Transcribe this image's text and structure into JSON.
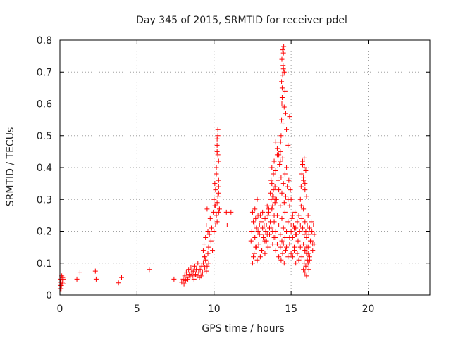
{
  "chart_data": {
    "type": "scatter",
    "title": "Day 345 of 2015, SRMTID for receiver pdel",
    "xlabel": "GPS time / hours",
    "ylabel": "SRMTID / TECUs",
    "xlim": [
      0,
      24
    ],
    "ylim": [
      0,
      0.8
    ],
    "xticks": [
      "0",
      "5",
      "10",
      "15",
      "20"
    ],
    "yticks": [
      "0",
      "0.1",
      "0.2",
      "0.3",
      "0.4",
      "0.5",
      "0.6",
      "0.7",
      "0.8"
    ],
    "grid": true,
    "marker": "+",
    "color": "#ff0000",
    "series": [
      {
        "name": "pdel",
        "x": [
          0.02,
          0.03,
          0.05,
          0.06,
          0.08,
          0.1,
          0.12,
          0.15,
          0.18,
          0.2,
          0.22,
          1.1,
          1.3,
          2.3,
          2.35,
          3.8,
          4.0,
          5.8,
          7.4,
          7.9,
          8.0,
          8.05,
          8.1,
          8.15,
          8.2,
          8.25,
          8.3,
          8.35,
          8.4,
          8.45,
          8.5,
          8.55,
          8.6,
          8.65,
          8.7,
          8.75,
          8.8,
          8.85,
          8.9,
          8.95,
          9.0,
          9.05,
          9.1,
          9.15,
          9.2,
          9.25,
          9.3,
          9.35,
          9.4,
          9.45,
          9.5,
          9.55,
          9.6,
          9.65,
          9.3,
          9.35,
          9.4,
          9.45,
          9.5,
          9.55,
          9.6,
          9.65,
          9.7,
          9.75,
          9.8,
          9.85,
          9.9,
          9.95,
          10.0,
          10.0,
          10.05,
          10.1,
          10.15,
          10.2,
          10.25,
          10.3,
          10.1,
          10.15,
          10.2,
          10.25,
          10.2,
          10.25,
          10.3,
          10.15,
          10.2,
          10.3,
          10.35,
          10.3,
          10.2,
          10.25,
          10.3,
          10.1,
          10.05,
          10.8,
          11.1,
          10.85,
          12.4,
          12.45,
          12.5,
          12.55,
          12.6,
          12.65,
          12.7,
          12.75,
          12.8,
          12.85,
          12.9,
          12.95,
          13.0,
          13.05,
          13.1,
          13.15,
          13.2,
          13.25,
          13.3,
          13.35,
          13.4,
          13.45,
          13.5,
          13.55,
          13.6,
          13.65,
          13.7,
          13.75,
          13.8,
          13.85,
          13.9,
          13.95,
          12.5,
          12.6,
          12.7,
          12.8,
          12.9,
          13.0,
          13.1,
          13.2,
          13.3,
          13.4,
          13.5,
          13.6,
          13.7,
          13.8,
          13.9,
          14.0,
          12.55,
          12.65,
          12.75,
          12.85,
          12.95,
          13.05,
          13.15,
          13.25,
          13.35,
          13.45,
          13.55,
          13.65,
          13.75,
          13.85,
          13.95,
          13.7,
          13.75,
          13.8,
          13.85,
          13.9,
          13.95,
          14.0,
          14.05,
          14.1,
          14.15,
          14.2,
          14.25,
          14.3,
          14.35,
          14.4,
          14.45,
          14.5,
          14.55,
          14.6,
          14.65,
          14.7,
          14.75,
          14.8,
          14.85,
          14.9,
          14.95,
          15.0,
          13.8,
          13.9,
          14.0,
          14.1,
          14.2,
          14.3,
          14.4,
          14.5,
          14.6,
          14.7,
          14.8,
          14.9,
          15.0,
          15.1,
          15.2,
          15.3,
          14.0,
          14.1,
          14.2,
          14.3,
          14.35,
          14.4,
          14.45,
          14.5,
          14.55,
          14.6,
          14.65,
          14.7,
          14.8,
          14.9,
          15.0,
          14.3,
          14.32,
          14.35,
          14.38,
          14.4,
          14.42,
          14.45,
          14.48,
          14.5,
          14.52,
          14.55,
          14.6,
          14.65,
          14.7,
          14.8,
          14.4,
          14.45,
          14.5,
          14.55,
          14.38,
          14.42,
          14.47,
          14.0,
          14.1,
          14.2,
          14.9,
          14.3,
          15.0,
          15.05,
          15.1,
          15.15,
          15.2,
          15.25,
          15.3,
          15.35,
          15.4,
          15.45,
          15.5,
          15.55,
          15.6,
          15.65,
          15.7,
          15.75,
          15.8,
          15.85,
          15.9,
          15.95,
          16.0,
          16.05,
          16.1,
          16.15,
          16.2,
          16.25,
          16.3,
          16.35,
          16.4,
          16.45,
          16.5,
          15.1,
          15.2,
          15.3,
          15.4,
          15.5,
          15.6,
          15.7,
          15.8,
          15.9,
          16.0,
          16.1,
          16.2,
          16.3,
          16.4,
          16.5,
          15.6,
          15.65,
          15.7,
          15.75,
          15.8,
          15.85,
          15.9,
          15.7,
          15.75,
          15.8,
          15.85,
          15.9,
          15.95,
          16.0,
          15.8,
          15.85,
          15.9,
          15.95,
          16.0,
          16.05,
          16.1,
          16.15,
          16.2,
          15.9,
          16.0,
          16.1
        ],
        "y": [
          0.02,
          0.04,
          0.03,
          0.05,
          0.02,
          0.03,
          0.06,
          0.04,
          0.055,
          0.035,
          0.05,
          0.05,
          0.07,
          0.075,
          0.05,
          0.038,
          0.055,
          0.08,
          0.05,
          0.04,
          0.05,
          0.035,
          0.06,
          0.045,
          0.07,
          0.055,
          0.05,
          0.08,
          0.065,
          0.06,
          0.085,
          0.07,
          0.06,
          0.075,
          0.05,
          0.09,
          0.065,
          0.08,
          0.06,
          0.1,
          0.07,
          0.055,
          0.08,
          0.06,
          0.09,
          0.07,
          0.1,
          0.12,
          0.085,
          0.11,
          0.075,
          0.09,
          0.13,
          0.1,
          0.14,
          0.16,
          0.12,
          0.18,
          0.22,
          0.27,
          0.2,
          0.15,
          0.19,
          0.24,
          0.17,
          0.21,
          0.14,
          0.26,
          0.2,
          0.3,
          0.35,
          0.28,
          0.4,
          0.45,
          0.5,
          0.42,
          0.33,
          0.38,
          0.47,
          0.52,
          0.49,
          0.44,
          0.36,
          0.25,
          0.29,
          0.32,
          0.27,
          0.34,
          0.23,
          0.31,
          0.26,
          0.22,
          0.28,
          0.26,
          0.26,
          0.22,
          0.17,
          0.2,
          0.26,
          0.12,
          0.22,
          0.18,
          0.24,
          0.15,
          0.3,
          0.2,
          0.16,
          0.22,
          0.25,
          0.19,
          0.14,
          0.21,
          0.18,
          0.24,
          0.17,
          0.2,
          0.22,
          0.19,
          0.25,
          0.27,
          0.21,
          0.23,
          0.3,
          0.35,
          0.28,
          0.33,
          0.25,
          0.3,
          0.1,
          0.13,
          0.15,
          0.11,
          0.16,
          0.12,
          0.14,
          0.18,
          0.13,
          0.17,
          0.15,
          0.19,
          0.21,
          0.16,
          0.18,
          0.2,
          0.23,
          0.27,
          0.21,
          0.25,
          0.19,
          0.23,
          0.26,
          0.22,
          0.24,
          0.28,
          0.26,
          0.32,
          0.27,
          0.31,
          0.29,
          0.36,
          0.4,
          0.31,
          0.38,
          0.42,
          0.34,
          0.39,
          0.3,
          0.44,
          0.36,
          0.33,
          0.41,
          0.28,
          0.37,
          0.32,
          0.43,
          0.35,
          0.29,
          0.38,
          0.31,
          0.4,
          0.34,
          0.3,
          0.36,
          0.28,
          0.33,
          0.3,
          0.2,
          0.23,
          0.18,
          0.25,
          0.22,
          0.19,
          0.24,
          0.21,
          0.26,
          0.2,
          0.23,
          0.18,
          0.22,
          0.25,
          0.21,
          0.19,
          0.14,
          0.16,
          0.12,
          0.15,
          0.11,
          0.17,
          0.13,
          0.16,
          0.1,
          0.18,
          0.14,
          0.15,
          0.12,
          0.16,
          0.13,
          0.45,
          0.48,
          0.5,
          0.55,
          0.6,
          0.65,
          0.69,
          0.72,
          0.76,
          0.78,
          0.7,
          0.64,
          0.57,
          0.52,
          0.47,
          0.74,
          0.77,
          0.71,
          0.59,
          0.67,
          0.62,
          0.54,
          0.48,
          0.46,
          0.44,
          0.56,
          0.42,
          0.2,
          0.24,
          0.18,
          0.22,
          0.15,
          0.26,
          0.21,
          0.19,
          0.23,
          0.17,
          0.25,
          0.2,
          0.22,
          0.28,
          0.24,
          0.21,
          0.27,
          0.19,
          0.23,
          0.2,
          0.18,
          0.22,
          0.25,
          0.19,
          0.21,
          0.17,
          0.23,
          0.2,
          0.16,
          0.22,
          0.19,
          0.12,
          0.14,
          0.1,
          0.13,
          0.11,
          0.15,
          0.12,
          0.16,
          0.14,
          0.13,
          0.15,
          0.11,
          0.17,
          0.14,
          0.16,
          0.3,
          0.34,
          0.38,
          0.41,
          0.36,
          0.4,
          0.33,
          0.28,
          0.42,
          0.37,
          0.43,
          0.35,
          0.39,
          0.31,
          0.08,
          0.1,
          0.07,
          0.09,
          0.06,
          0.11,
          0.1,
          0.08,
          0.12,
          0.14,
          0.15,
          0.13
        ]
      }
    ]
  }
}
